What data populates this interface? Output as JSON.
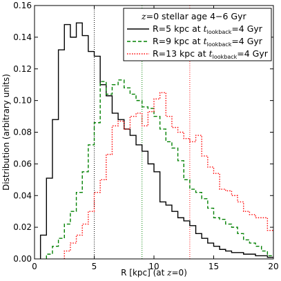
{
  "chart_data": {
    "type": "line",
    "drawstyle": "steps",
    "xlabel": "R [kpc] (at z=0)",
    "ylabel": "Distribution (arbitrary units)",
    "xlim": [
      0,
      20
    ],
    "ylim": [
      0,
      0.16
    ],
    "xticks": [
      "0",
      "5",
      "10",
      "15",
      "20"
    ],
    "yticks": [
      "0.00",
      "0.02",
      "0.04",
      "0.06",
      "0.08",
      "0.10",
      "0.12",
      "0.14",
      "0.16"
    ],
    "legend": {
      "placement": "top-right",
      "title": "z = 0 stellar age 4−6 Gyr"
    },
    "vlines": [
      {
        "x": 5,
        "color": "#000000"
      },
      {
        "x": 9,
        "color": "#008000"
      },
      {
        "x": 13,
        "color": "#ff0000"
      }
    ],
    "bin_width": 0.5,
    "series": [
      {
        "name": "R=5 kpc at t_lookback=4 Gyr",
        "color": "#000000",
        "dash": "solid",
        "bin_starts": [
          0.5,
          1,
          1.5,
          2,
          2.5,
          3,
          3.5,
          4,
          4.5,
          5,
          5.5,
          6,
          6.5,
          7,
          7.5,
          8,
          8.5,
          9,
          9.5,
          10,
          10.5,
          11,
          11.5,
          12,
          12.5,
          13,
          13.5,
          14,
          14.5,
          15,
          15.5,
          16,
          16.5,
          17,
          17.5,
          18,
          18.5,
          19,
          19.5
        ],
        "values": [
          0.015,
          0.051,
          0.088,
          0.132,
          0.148,
          0.14,
          0.149,
          0.141,
          0.131,
          0.128,
          0.11,
          0.103,
          0.092,
          0.088,
          0.082,
          0.078,
          0.072,
          0.068,
          0.06,
          0.055,
          0.036,
          0.034,
          0.03,
          0.026,
          0.024,
          0.021,
          0.016,
          0.013,
          0.01,
          0.008,
          0.006,
          0.005,
          0.004,
          0.004,
          0.003,
          0.003,
          0.002,
          0.002,
          0.001
        ]
      },
      {
        "name": "R=9 kpc at t_lookback=4 Gyr",
        "color": "#008000",
        "dash": "dashed",
        "bin_starts": [
          1,
          1.5,
          2,
          2.5,
          3,
          3.5,
          4,
          4.5,
          5,
          5.5,
          6,
          6.5,
          7,
          7.5,
          8,
          8.5,
          9,
          9.5,
          10,
          10.5,
          11,
          11.5,
          12,
          12.5,
          13,
          13.5,
          14,
          14.5,
          15,
          15.5,
          16,
          16.5,
          17,
          17.5,
          18,
          18.5,
          19,
          19.5
        ],
        "values": [
          0.003,
          0.008,
          0.013,
          0.022,
          0.03,
          0.042,
          0.055,
          0.072,
          0.086,
          0.112,
          0.104,
          0.11,
          0.113,
          0.108,
          0.104,
          0.1,
          0.096,
          0.095,
          0.09,
          0.082,
          0.074,
          0.07,
          0.062,
          0.05,
          0.044,
          0.042,
          0.038,
          0.032,
          0.026,
          0.025,
          0.022,
          0.02,
          0.016,
          0.012,
          0.01,
          0.008,
          0.005,
          0.002
        ]
      },
      {
        "name": "R=13 kpc at t_lookback=4 Gyr",
        "color": "#ff0000",
        "dash": "dotted",
        "bin_starts": [
          2.5,
          3,
          3.5,
          4,
          4.5,
          5,
          5.5,
          6,
          6.5,
          7,
          7.5,
          8,
          8.5,
          9,
          9.5,
          10,
          10.5,
          11,
          11.5,
          12,
          12.5,
          13,
          13.5,
          14,
          14.5,
          15,
          15.5,
          16,
          16.5,
          17,
          17.5,
          18,
          18.5,
          19,
          19.5
        ],
        "values": [
          0.005,
          0.01,
          0.015,
          0.022,
          0.03,
          0.042,
          0.05,
          0.066,
          0.084,
          0.087,
          0.082,
          0.09,
          0.092,
          0.084,
          0.093,
          0.101,
          0.105,
          0.09,
          0.083,
          0.08,
          0.076,
          0.074,
          0.078,
          0.065,
          0.058,
          0.054,
          0.044,
          0.043,
          0.04,
          0.036,
          0.03,
          0.028,
          0.026,
          0.026,
          0.018
        ]
      }
    ]
  }
}
